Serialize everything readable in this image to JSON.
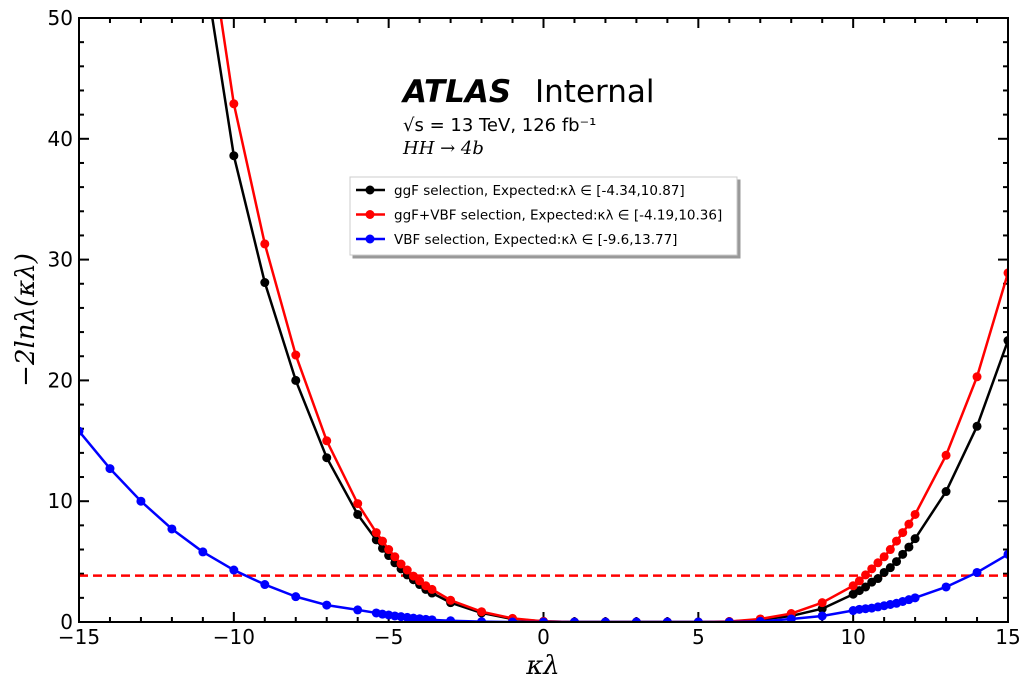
{
  "chart_data": {
    "type": "line",
    "xlabel": "κλ",
    "ylabel": "−2lnλ(κλ)",
    "xlim": [
      -15,
      15
    ],
    "ylim": [
      0,
      50
    ],
    "xticks": [
      "−15",
      "−10",
      "−5",
      "0",
      "5",
      "10",
      "15"
    ],
    "yticks": [
      "0",
      "10",
      "20",
      "30",
      "40",
      "50"
    ],
    "annotations": {
      "experiment": "ATLAS",
      "status": "Internal",
      "energy": "√s = 13 TeV, 126 fb⁻¹",
      "process": "HH → 4b"
    },
    "legend_placement": "upper-center",
    "threshold": {
      "y": 3.84,
      "color": "#ff0000",
      "style": "dashed"
    },
    "series": [
      {
        "name": "ggF selection, Expected:κλ ∈  [-4.34,10.87]",
        "color": "#000000",
        "x": [
          -11,
          -10,
          -9,
          -8,
          -7,
          -6,
          -5.4,
          -5.2,
          -5.0,
          -4.8,
          -4.6,
          -4.4,
          -4.2,
          -4.0,
          -3.8,
          -3.6,
          -3,
          -2,
          -1,
          0,
          1,
          2,
          3,
          4,
          5,
          6,
          7,
          8,
          9,
          10,
          10.2,
          10.4,
          10.6,
          10.8,
          11.0,
          11.2,
          11.4,
          11.6,
          11.8,
          12,
          13,
          14,
          15
        ],
        "y": [
          55,
          38.6,
          28.1,
          20.0,
          13.6,
          8.9,
          6.8,
          6.1,
          5.5,
          4.9,
          4.4,
          3.9,
          3.5,
          3.1,
          2.7,
          2.4,
          1.6,
          0.75,
          0.25,
          0.05,
          0,
          0,
          0,
          0,
          0,
          0.03,
          0.2,
          0.5,
          1.1,
          2.3,
          2.6,
          2.9,
          3.3,
          3.6,
          4.1,
          4.5,
          5.0,
          5.6,
          6.2,
          6.9,
          10.8,
          16.2,
          23.3
        ]
      },
      {
        "name": "ggF+VBF selection, Expected:κλ ∈ [-4.19,10.36]",
        "color": "#ff0000",
        "x": [
          -11,
          -10,
          -9,
          -8,
          -7,
          -6,
          -5.4,
          -5.2,
          -5.0,
          -4.8,
          -4.6,
          -4.4,
          -4.2,
          -4.0,
          -3.8,
          -3.6,
          -3,
          -2,
          -1,
          0,
          1,
          2,
          3,
          4,
          5,
          6,
          7,
          8,
          9,
          10,
          10.2,
          10.4,
          10.6,
          10.8,
          11.0,
          11.2,
          11.4,
          11.6,
          11.8,
          12,
          13,
          14,
          15
        ],
        "y": [
          60,
          42.9,
          31.3,
          22.1,
          15.0,
          9.8,
          7.4,
          6.7,
          6.0,
          5.4,
          4.8,
          4.3,
          3.8,
          3.4,
          3.0,
          2.7,
          1.8,
          0.85,
          0.3,
          0.05,
          0,
          0,
          0,
          0,
          0,
          0.04,
          0.25,
          0.7,
          1.6,
          3.0,
          3.4,
          3.9,
          4.4,
          4.9,
          5.4,
          6.0,
          6.7,
          7.4,
          8.1,
          8.9,
          13.8,
          20.3,
          28.9
        ]
      },
      {
        "name": "VBF selection, Expected:κλ ∈ [-9.6,13.77]",
        "color": "#0000ff",
        "x": [
          -15,
          -14,
          -13,
          -12,
          -11,
          -10,
          -9,
          -8,
          -7,
          -6,
          -5.4,
          -5.2,
          -5.0,
          -4.8,
          -4.6,
          -4.4,
          -4.2,
          -4.0,
          -3.8,
          -3.6,
          -3,
          -2,
          -1,
          0,
          1,
          2,
          3,
          4,
          5,
          6,
          7,
          8,
          9,
          10,
          10.2,
          10.4,
          10.6,
          10.8,
          11.0,
          11.2,
          11.4,
          11.6,
          11.8,
          12,
          13,
          14,
          15
        ],
        "y": [
          15.8,
          12.7,
          10.0,
          7.7,
          5.8,
          4.3,
          3.1,
          2.1,
          1.4,
          1.0,
          0.75,
          0.65,
          0.58,
          0.5,
          0.44,
          0.38,
          0.32,
          0.27,
          0.22,
          0.18,
          0.1,
          0.03,
          0,
          0,
          0,
          0,
          0,
          0,
          0,
          0,
          0.05,
          0.25,
          0.5,
          0.95,
          1.05,
          1.1,
          1.15,
          1.25,
          1.35,
          1.45,
          1.55,
          1.7,
          1.85,
          2.0,
          2.9,
          4.1,
          5.6
        ]
      }
    ]
  }
}
